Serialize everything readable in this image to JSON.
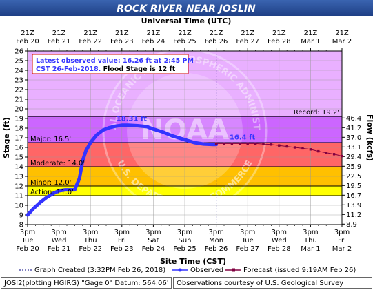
{
  "chart_data": {
    "type": "line",
    "title": "ROCK RIVER NEAR JOSLIN",
    "top_axis_label": "Universal Time (UTC)",
    "xlabel": "Site Time (CST)",
    "ylabel": "Stage (ft)",
    "ylabel_right": "Flow (kcfs)",
    "x_range": [
      "2018-02-20 15:00",
      "2018-03-02 15:00"
    ],
    "ylim": [
      8,
      26
    ],
    "y_ticks": [
      8,
      9,
      10,
      11,
      12,
      13,
      14,
      15,
      16,
      17,
      18,
      19,
      20,
      21,
      22,
      23,
      24,
      25,
      26
    ],
    "top_ticks": [
      {
        "l1": "21Z",
        "l2": "Feb 20"
      },
      {
        "l1": "21Z",
        "l2": "Feb 21"
      },
      {
        "l1": "21Z",
        "l2": "Feb 22"
      },
      {
        "l1": "21Z",
        "l2": "Feb 23"
      },
      {
        "l1": "21Z",
        "l2": "Feb 24"
      },
      {
        "l1": "21Z",
        "l2": "Feb 25"
      },
      {
        "l1": "21Z",
        "l2": "Feb 26"
      },
      {
        "l1": "21Z",
        "l2": "Feb 27"
      },
      {
        "l1": "21Z",
        "l2": "Feb 28"
      },
      {
        "l1": "21Z",
        "l2": "Mar 1"
      },
      {
        "l1": "21Z",
        "l2": "Mar 2"
      }
    ],
    "bottom_ticks": [
      {
        "l1": "3pm",
        "l2": "Tue",
        "l3": "Feb 20"
      },
      {
        "l1": "3pm",
        "l2": "Wed",
        "l3": "Feb 21"
      },
      {
        "l1": "3pm",
        "l2": "Thu",
        "l3": "Feb 22"
      },
      {
        "l1": "3pm",
        "l2": "Fri",
        "l3": "Feb 23"
      },
      {
        "l1": "3pm",
        "l2": "Sat",
        "l3": "Feb 24"
      },
      {
        "l1": "3pm",
        "l2": "Sun",
        "l3": "Feb 25"
      },
      {
        "l1": "3pm",
        "l2": "Mon",
        "l3": "Feb 26"
      },
      {
        "l1": "3pm",
        "l2": "Tue",
        "l3": "Feb 27"
      },
      {
        "l1": "3pm",
        "l2": "Wed",
        "l3": "Feb 28"
      },
      {
        "l1": "3pm",
        "l2": "Thu",
        "l3": "Mar 1"
      },
      {
        "l1": "3pm",
        "l2": "Fri",
        "l3": "Mar 2"
      }
    ],
    "right_ticks": [
      {
        "stage": 8.05,
        "label": "8.9"
      },
      {
        "stage": 9.05,
        "label": "11.2"
      },
      {
        "stage": 10.05,
        "label": "13.9"
      },
      {
        "stage": 11.05,
        "label": "16.7"
      },
      {
        "stage": 12.05,
        "label": "19.5"
      },
      {
        "stage": 13.05,
        "label": "22.5"
      },
      {
        "stage": 14.05,
        "label": "25.9"
      },
      {
        "stage": 15.05,
        "label": "29.4"
      },
      {
        "stage": 16.05,
        "label": "33.1"
      },
      {
        "stage": 17.05,
        "label": "37.0"
      },
      {
        "stage": 18.05,
        "label": "41.2"
      },
      {
        "stage": 19.05,
        "label": "46.4"
      }
    ],
    "flood_zones": [
      {
        "name": "Action",
        "label": "Action: 11.0'",
        "from": 11,
        "to": 12,
        "color": "#ffff00"
      },
      {
        "name": "Minor",
        "label": "Minor: 12.0'",
        "from": 12,
        "to": 14,
        "color": "#ffc000"
      },
      {
        "name": "Moderate",
        "label": "Moderate: 14.0'",
        "from": 14,
        "to": 16.5,
        "color": "#ff6666"
      },
      {
        "name": "Major",
        "label": "Major: 16.5'",
        "from": 16.5,
        "to": 19.2,
        "color": "#cc66ff"
      },
      {
        "name": "Record",
        "label": "Record: 19.2'",
        "from": 19.2,
        "to": 26,
        "color": "#e9b0ff"
      }
    ],
    "series": [
      {
        "name": "Observed",
        "color": "#3333ff",
        "x_days_note": "x in days after Feb 20 3pm CST",
        "x": [
          0,
          0.2,
          0.4,
          0.6,
          0.8,
          1.0,
          1.2,
          1.5,
          1.65,
          1.75,
          1.85,
          2.0,
          2.2,
          2.4,
          2.6,
          2.8,
          3.0,
          3.2,
          3.5,
          3.8,
          4.0,
          4.3,
          4.6,
          5.0,
          5.3,
          5.6,
          5.9,
          6.0
        ],
        "values": [
          9.0,
          9.7,
          10.3,
          10.8,
          11.2,
          11.5,
          11.6,
          11.6,
          12.8,
          14.6,
          15.6,
          16.5,
          17.3,
          17.8,
          18.05,
          18.2,
          18.3,
          18.3,
          18.25,
          18.15,
          17.9,
          17.6,
          17.2,
          16.8,
          16.5,
          16.35,
          16.3,
          16.3
        ]
      },
      {
        "name": "Forecast",
        "color": "#800040",
        "x": [
          6.0,
          6.25,
          6.5,
          6.75,
          7.0,
          7.25,
          7.5,
          7.75,
          8.0,
          8.25,
          8.5,
          8.75,
          9.0,
          9.25,
          9.5,
          9.75,
          10.0
        ],
        "values": [
          16.4,
          16.4,
          16.4,
          16.4,
          16.4,
          16.4,
          16.35,
          16.3,
          16.2,
          16.1,
          16.0,
          15.9,
          15.8,
          15.6,
          15.45,
          15.3,
          15.1
        ]
      }
    ],
    "annotations": [
      {
        "text": "18.31 ft",
        "x": 3.0,
        "y": 18.31,
        "color": "#3333ff"
      },
      {
        "text": "16.4 ft",
        "x": 6.6,
        "y": 16.4,
        "color": "#3333ff"
      }
    ],
    "info_box": {
      "line1": "Latest observed value: 16.26 ft at 2:45 PM",
      "line2a": "CST 26-Feb-2018.",
      "line2b": " Flood Stage is 12 ft"
    },
    "legend": [
      {
        "label": "Graph Created (3:32PM Feb 26, 2018)",
        "style": "dotted",
        "color": "#000080"
      },
      {
        "label": "Observed",
        "style": "line-dot",
        "color": "#3333ff"
      },
      {
        "label": "Forecast (issued 9:19AM Feb 26)",
        "style": "line-square",
        "color": "#800040"
      }
    ],
    "graph_created_x": 6.0,
    "watermark": {
      "text": "NOAA",
      "ring_text": "NATIONAL OCEANIC AND ATMOSPHERIC ADMINISTRATION",
      "ring_text_bottom": "U.S. DEPARTMENT OF COMMERCE"
    }
  },
  "footer": {
    "left": "JOSI2(plotting HGIRG) \"Gage 0\" Datum: 564.06'",
    "right": "Observations courtesy of U.S. Geological Survey"
  }
}
